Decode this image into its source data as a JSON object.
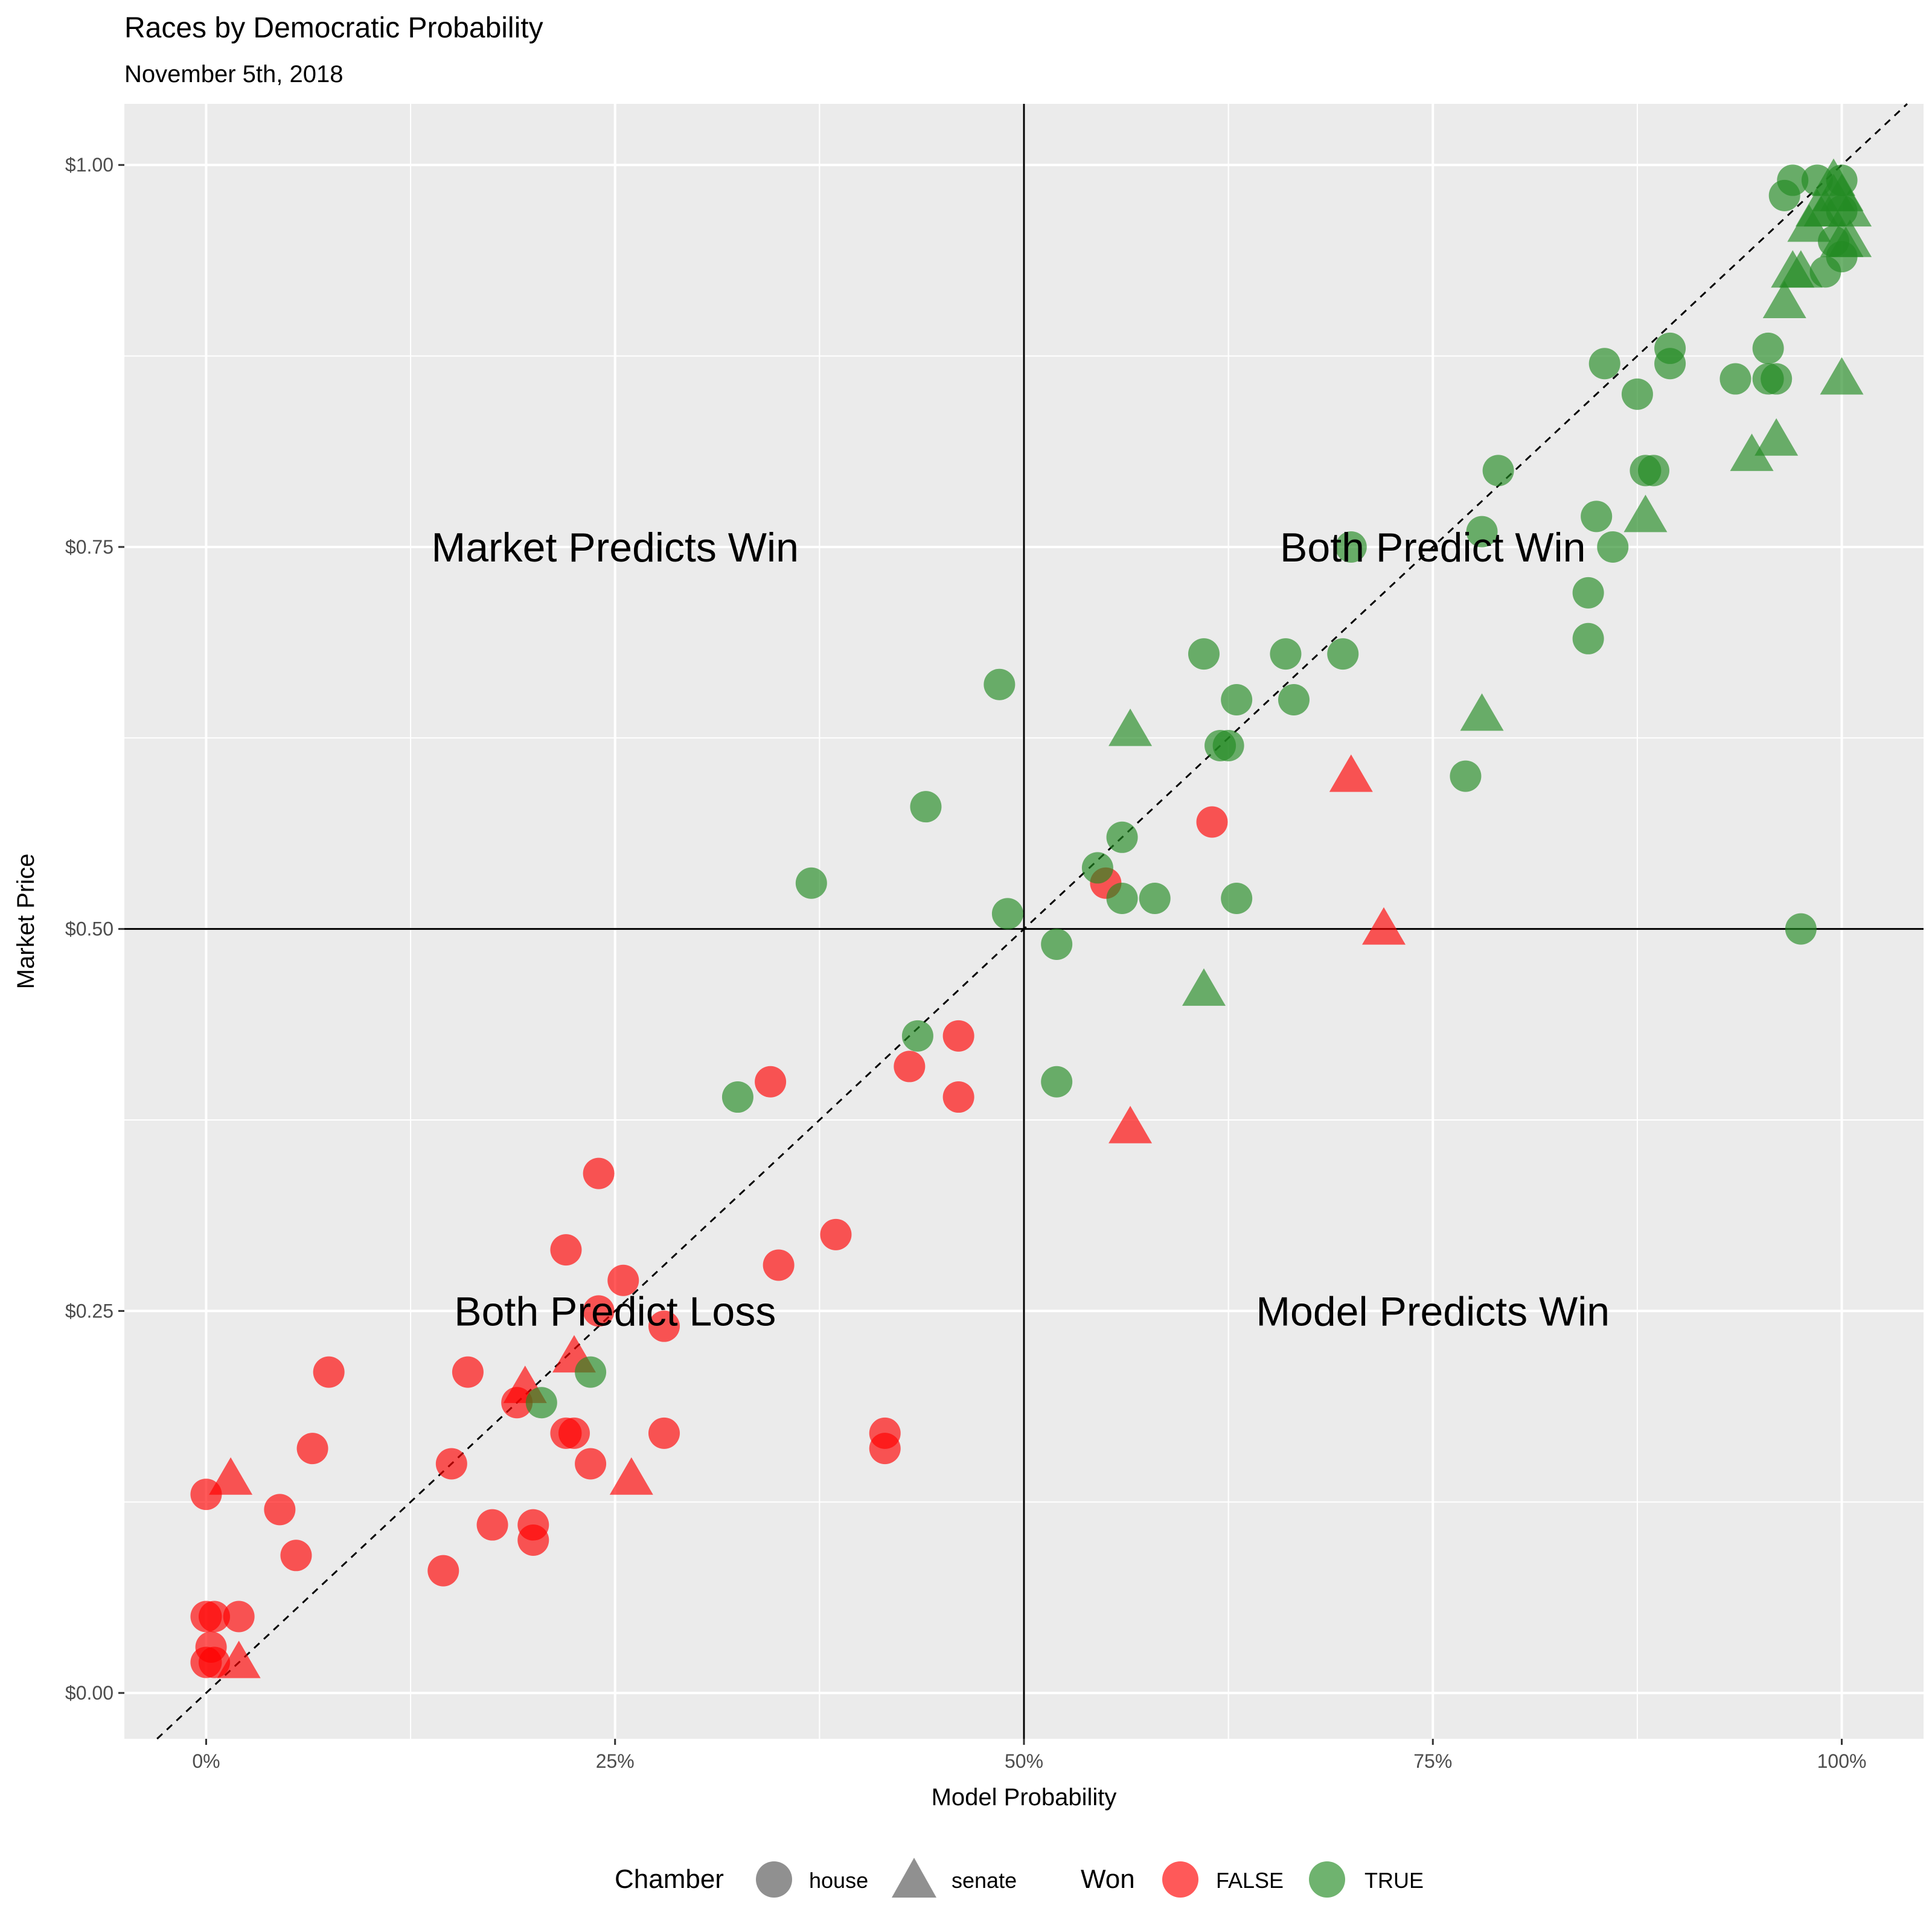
{
  "chart_data": {
    "type": "scatter",
    "title": "Races by Democratic Probability",
    "subtitle": "November 5th, 2018",
    "xlabel": "Model Probability",
    "ylabel": "Market Price",
    "xlim": [
      -0.05,
      1.05
    ],
    "ylim": [
      -0.03,
      1.04
    ],
    "x_ticks": [
      0,
      0.25,
      0.5,
      0.75,
      1.0
    ],
    "x_tick_labels": [
      "0%",
      "25%",
      "50%",
      "75%",
      "100%"
    ],
    "y_ticks": [
      0,
      0.25,
      0.5,
      0.75,
      1.0
    ],
    "y_tick_labels": [
      "$0.00",
      "$0.25",
      "$0.50",
      "$0.75",
      "$1.00"
    ],
    "grid": true,
    "reference_lines": {
      "vertical_x": 0.5,
      "horizontal_y": 0.5,
      "diagonal": "y = x (dashed)"
    },
    "annotations": [
      {
        "text": "Market Predicts Win",
        "x": 0.25,
        "y": 0.75
      },
      {
        "text": "Both Predict Win",
        "x": 0.75,
        "y": 0.75
      },
      {
        "text": "Both Predict Loss",
        "x": 0.25,
        "y": 0.25
      },
      {
        "text": "Model Predicts Win",
        "x": 0.75,
        "y": 0.25
      }
    ],
    "legend": {
      "position": "bottom",
      "chamber_title": "Chamber",
      "chamber_items": [
        "house",
        "senate"
      ],
      "won_title": "Won",
      "won_items": [
        "FALSE",
        "TRUE"
      ]
    },
    "colors": {
      "FALSE": "#ff0000",
      "TRUE": "#228b22",
      "panel": "#ebebeb",
      "grid": "#ffffff"
    },
    "points": [
      {
        "x": 0.0,
        "y": 0.02,
        "c": "house",
        "w": false
      },
      {
        "x": 0.005,
        "y": 0.02,
        "c": "house",
        "w": false
      },
      {
        "x": 0.0,
        "y": 0.05,
        "c": "house",
        "w": false
      },
      {
        "x": 0.005,
        "y": 0.05,
        "c": "house",
        "w": false
      },
      {
        "x": 0.02,
        "y": 0.05,
        "c": "house",
        "w": false
      },
      {
        "x": 0.003,
        "y": 0.03,
        "c": "house",
        "w": false
      },
      {
        "x": 0.0,
        "y": 0.13,
        "c": "house",
        "w": false
      },
      {
        "x": 0.045,
        "y": 0.12,
        "c": "house",
        "w": false
      },
      {
        "x": 0.055,
        "y": 0.09,
        "c": "house",
        "w": false
      },
      {
        "x": 0.065,
        "y": 0.16,
        "c": "house",
        "w": false
      },
      {
        "x": 0.075,
        "y": 0.21,
        "c": "house",
        "w": false
      },
      {
        "x": 0.145,
        "y": 0.08,
        "c": "house",
        "w": false
      },
      {
        "x": 0.15,
        "y": 0.15,
        "c": "house",
        "w": false
      },
      {
        "x": 0.16,
        "y": 0.21,
        "c": "house",
        "w": false
      },
      {
        "x": 0.175,
        "y": 0.11,
        "c": "house",
        "w": false
      },
      {
        "x": 0.19,
        "y": 0.19,
        "c": "house",
        "w": false
      },
      {
        "x": 0.2,
        "y": 0.11,
        "c": "house",
        "w": false
      },
      {
        "x": 0.2,
        "y": 0.1,
        "c": "house",
        "w": false
      },
      {
        "x": 0.22,
        "y": 0.17,
        "c": "house",
        "w": false
      },
      {
        "x": 0.225,
        "y": 0.17,
        "c": "house",
        "w": false
      },
      {
        "x": 0.22,
        "y": 0.29,
        "c": "house",
        "w": false
      },
      {
        "x": 0.235,
        "y": 0.15,
        "c": "house",
        "w": false
      },
      {
        "x": 0.24,
        "y": 0.25,
        "c": "house",
        "w": false
      },
      {
        "x": 0.24,
        "y": 0.34,
        "c": "house",
        "w": false
      },
      {
        "x": 0.255,
        "y": 0.27,
        "c": "house",
        "w": false
      },
      {
        "x": 0.28,
        "y": 0.24,
        "c": "house",
        "w": false
      },
      {
        "x": 0.28,
        "y": 0.17,
        "c": "house",
        "w": false
      },
      {
        "x": 0.345,
        "y": 0.4,
        "c": "house",
        "w": false
      },
      {
        "x": 0.35,
        "y": 0.28,
        "c": "house",
        "w": false
      },
      {
        "x": 0.385,
        "y": 0.3,
        "c": "house",
        "w": false
      },
      {
        "x": 0.415,
        "y": 0.16,
        "c": "house",
        "w": false
      },
      {
        "x": 0.415,
        "y": 0.17,
        "c": "house",
        "w": false
      },
      {
        "x": 0.43,
        "y": 0.41,
        "c": "house",
        "w": false
      },
      {
        "x": 0.46,
        "y": 0.43,
        "c": "house",
        "w": false
      },
      {
        "x": 0.46,
        "y": 0.39,
        "c": "house",
        "w": false
      },
      {
        "x": 0.55,
        "y": 0.53,
        "c": "house",
        "w": false
      },
      {
        "x": 0.615,
        "y": 0.57,
        "c": "house",
        "w": false
      },
      {
        "x": 0.015,
        "y": 0.14,
        "c": "senate",
        "w": false
      },
      {
        "x": 0.02,
        "y": 0.02,
        "c": "senate",
        "w": false
      },
      {
        "x": 0.195,
        "y": 0.2,
        "c": "senate",
        "w": false
      },
      {
        "x": 0.225,
        "y": 0.22,
        "c": "senate",
        "w": false
      },
      {
        "x": 0.26,
        "y": 0.14,
        "c": "senate",
        "w": false
      },
      {
        "x": 0.565,
        "y": 0.37,
        "c": "senate",
        "w": false
      },
      {
        "x": 0.7,
        "y": 0.6,
        "c": "senate",
        "w": false
      },
      {
        "x": 0.72,
        "y": 0.5,
        "c": "senate",
        "w": false
      },
      {
        "x": 0.205,
        "y": 0.19,
        "c": "house",
        "w": true
      },
      {
        "x": 0.235,
        "y": 0.21,
        "c": "house",
        "w": true
      },
      {
        "x": 0.325,
        "y": 0.39,
        "c": "house",
        "w": true
      },
      {
        "x": 0.37,
        "y": 0.53,
        "c": "house",
        "w": true
      },
      {
        "x": 0.435,
        "y": 0.43,
        "c": "house",
        "w": true
      },
      {
        "x": 0.44,
        "y": 0.58,
        "c": "house",
        "w": true
      },
      {
        "x": 0.485,
        "y": 0.66,
        "c": "house",
        "w": true
      },
      {
        "x": 0.49,
        "y": 0.51,
        "c": "house",
        "w": true
      },
      {
        "x": 0.52,
        "y": 0.49,
        "c": "house",
        "w": true
      },
      {
        "x": 0.52,
        "y": 0.4,
        "c": "house",
        "w": true
      },
      {
        "x": 0.545,
        "y": 0.54,
        "c": "house",
        "w": true
      },
      {
        "x": 0.56,
        "y": 0.56,
        "c": "house",
        "w": true
      },
      {
        "x": 0.56,
        "y": 0.52,
        "c": "house",
        "w": true
      },
      {
        "x": 0.58,
        "y": 0.52,
        "c": "house",
        "w": true
      },
      {
        "x": 0.61,
        "y": 0.68,
        "c": "house",
        "w": true
      },
      {
        "x": 0.62,
        "y": 0.62,
        "c": "house",
        "w": true
      },
      {
        "x": 0.625,
        "y": 0.62,
        "c": "house",
        "w": true
      },
      {
        "x": 0.63,
        "y": 0.65,
        "c": "house",
        "w": true
      },
      {
        "x": 0.63,
        "y": 0.52,
        "c": "house",
        "w": true
      },
      {
        "x": 0.66,
        "y": 0.68,
        "c": "house",
        "w": true
      },
      {
        "x": 0.665,
        "y": 0.65,
        "c": "house",
        "w": true
      },
      {
        "x": 0.695,
        "y": 0.68,
        "c": "house",
        "w": true
      },
      {
        "x": 0.7,
        "y": 0.75,
        "c": "house",
        "w": true
      },
      {
        "x": 0.77,
        "y": 0.6,
        "c": "house",
        "w": true
      },
      {
        "x": 0.78,
        "y": 0.76,
        "c": "house",
        "w": true
      },
      {
        "x": 0.79,
        "y": 0.8,
        "c": "house",
        "w": true
      },
      {
        "x": 0.845,
        "y": 0.72,
        "c": "house",
        "w": true
      },
      {
        "x": 0.845,
        "y": 0.69,
        "c": "house",
        "w": true
      },
      {
        "x": 0.85,
        "y": 0.77,
        "c": "house",
        "w": true
      },
      {
        "x": 0.855,
        "y": 0.87,
        "c": "house",
        "w": true
      },
      {
        "x": 0.86,
        "y": 0.75,
        "c": "house",
        "w": true
      },
      {
        "x": 0.875,
        "y": 0.85,
        "c": "house",
        "w": true
      },
      {
        "x": 0.88,
        "y": 0.8,
        "c": "house",
        "w": true
      },
      {
        "x": 0.885,
        "y": 0.8,
        "c": "house",
        "w": true
      },
      {
        "x": 0.895,
        "y": 0.88,
        "c": "house",
        "w": true
      },
      {
        "x": 0.895,
        "y": 0.87,
        "c": "house",
        "w": true
      },
      {
        "x": 0.935,
        "y": 0.86,
        "c": "house",
        "w": true
      },
      {
        "x": 0.955,
        "y": 0.88,
        "c": "house",
        "w": true
      },
      {
        "x": 0.955,
        "y": 0.86,
        "c": "house",
        "w": true
      },
      {
        "x": 0.96,
        "y": 0.86,
        "c": "house",
        "w": true
      },
      {
        "x": 0.965,
        "y": 0.98,
        "c": "house",
        "w": true
      },
      {
        "x": 0.97,
        "y": 0.99,
        "c": "house",
        "w": true
      },
      {
        "x": 0.985,
        "y": 0.99,
        "c": "house",
        "w": true
      },
      {
        "x": 0.975,
        "y": 0.5,
        "c": "house",
        "w": true
      },
      {
        "x": 0.99,
        "y": 0.93,
        "c": "house",
        "w": true
      },
      {
        "x": 0.995,
        "y": 0.95,
        "c": "house",
        "w": true
      },
      {
        "x": 1.0,
        "y": 0.99,
        "c": "house",
        "w": true
      },
      {
        "x": 1.0,
        "y": 0.94,
        "c": "house",
        "w": true
      },
      {
        "x": 1.0,
        "y": 0.97,
        "c": "house",
        "w": true
      },
      {
        "x": 0.565,
        "y": 0.63,
        "c": "senate",
        "w": true
      },
      {
        "x": 0.61,
        "y": 0.46,
        "c": "senate",
        "w": true
      },
      {
        "x": 0.78,
        "y": 0.64,
        "c": "senate",
        "w": true
      },
      {
        "x": 0.88,
        "y": 0.77,
        "c": "senate",
        "w": true
      },
      {
        "x": 0.945,
        "y": 0.81,
        "c": "senate",
        "w": true
      },
      {
        "x": 0.96,
        "y": 0.82,
        "c": "senate",
        "w": true
      },
      {
        "x": 0.965,
        "y": 0.91,
        "c": "senate",
        "w": true
      },
      {
        "x": 0.97,
        "y": 0.93,
        "c": "senate",
        "w": true
      },
      {
        "x": 0.975,
        "y": 0.93,
        "c": "senate",
        "w": true
      },
      {
        "x": 0.98,
        "y": 0.96,
        "c": "senate",
        "w": true
      },
      {
        "x": 0.985,
        "y": 0.97,
        "c": "senate",
        "w": true
      },
      {
        "x": 0.99,
        "y": 0.97,
        "c": "senate",
        "w": true
      },
      {
        "x": 0.995,
        "y": 0.98,
        "c": "senate",
        "w": true
      },
      {
        "x": 1.0,
        "y": 0.98,
        "c": "senate",
        "w": true
      },
      {
        "x": 1.0,
        "y": 0.95,
        "c": "senate",
        "w": true
      },
      {
        "x": 1.005,
        "y": 0.97,
        "c": "senate",
        "w": true
      },
      {
        "x": 1.0,
        "y": 0.86,
        "c": "senate",
        "w": true
      },
      {
        "x": 0.995,
        "y": 0.99,
        "c": "senate",
        "w": true
      },
      {
        "x": 1.005,
        "y": 0.95,
        "c": "senate",
        "w": true
      }
    ]
  }
}
